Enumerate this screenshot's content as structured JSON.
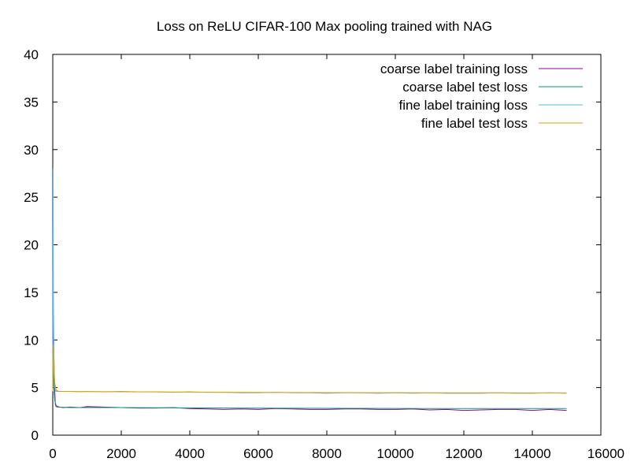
{
  "chart_data": {
    "type": "line",
    "title": "Loss on ReLU CIFAR-100 Max pooling trained with NAG",
    "xlabel": "",
    "ylabel": "",
    "xlim": [
      0,
      16000
    ],
    "ylim": [
      0,
      40
    ],
    "x_ticks": [
      0,
      2000,
      4000,
      6000,
      8000,
      10000,
      12000,
      14000,
      16000
    ],
    "y_ticks": [
      0,
      5,
      10,
      15,
      20,
      25,
      30,
      35,
      40
    ],
    "grid": false,
    "legend_position": "top-right",
    "series": [
      {
        "name": "coarse label training loss",
        "color": "#990099",
        "x": [
          0,
          15,
          30,
          45,
          60,
          75,
          100,
          150,
          200,
          300,
          500,
          800,
          1000,
          1500,
          2000,
          2500,
          3000,
          3500,
          4000,
          4500,
          5000,
          5500,
          6000,
          6500,
          7000,
          7500,
          8000,
          8500,
          9000,
          9500,
          10000,
          10500,
          11000,
          11500,
          12000,
          12500,
          13000,
          13500,
          14000,
          14500,
          15000
        ],
        "y": [
          4.6,
          12.4,
          9.0,
          6.0,
          4.5,
          3.2,
          3.0,
          2.95,
          2.95,
          2.9,
          2.95,
          2.9,
          3.0,
          2.95,
          2.9,
          2.85,
          2.85,
          2.9,
          2.8,
          2.75,
          2.7,
          2.75,
          2.7,
          2.8,
          2.75,
          2.7,
          2.7,
          2.75,
          2.75,
          2.7,
          2.7,
          2.75,
          2.65,
          2.7,
          2.6,
          2.65,
          2.7,
          2.7,
          2.6,
          2.7,
          2.6
        ]
      },
      {
        "name": "coarse label test loss",
        "color": "#009e73",
        "x": [
          0,
          15,
          30,
          60,
          100,
          200,
          500,
          1000,
          2000,
          3000,
          4000,
          5000,
          6000,
          7000,
          8000,
          9000,
          10000,
          11000,
          12000,
          13000,
          14000,
          15000
        ],
        "y": [
          4.6,
          7.0,
          5.0,
          3.6,
          3.1,
          2.95,
          2.9,
          2.9,
          2.9,
          2.88,
          2.86,
          2.85,
          2.84,
          2.83,
          2.82,
          2.82,
          2.81,
          2.8,
          2.8,
          2.8,
          2.79,
          2.79
        ]
      },
      {
        "name": "fine label training loss",
        "color": "#56b4e9",
        "x": [
          0,
          10,
          20,
          35,
          50,
          70,
          100,
          150,
          200,
          300,
          500,
          800,
          1000,
          1500,
          2000,
          2500,
          3000,
          3500,
          4000,
          4500,
          5000,
          5500,
          6000,
          6500,
          7000,
          7500,
          8000,
          8500,
          9000,
          9500,
          10000,
          10500,
          11000,
          11500,
          12000,
          12500,
          13000,
          13500,
          14000,
          14500,
          15000
        ],
        "y": [
          4.6,
          28.0,
          14.0,
          8.5,
          5.5,
          4.7,
          4.6,
          4.6,
          4.6,
          4.6,
          4.6,
          4.55,
          4.6,
          4.55,
          4.6,
          4.55,
          4.55,
          4.5,
          4.55,
          4.5,
          4.5,
          4.45,
          4.45,
          4.5,
          4.45,
          4.45,
          4.4,
          4.45,
          4.45,
          4.4,
          4.45,
          4.4,
          4.45,
          4.4,
          4.4,
          4.4,
          4.45,
          4.4,
          4.4,
          4.45,
          4.4
        ]
      },
      {
        "name": "fine label test loss",
        "color": "#e69f00",
        "x": [
          0,
          15,
          30,
          60,
          100,
          200,
          500,
          1000,
          2000,
          3000,
          4000,
          5000,
          6000,
          7000,
          8000,
          9000,
          10000,
          11000,
          12000,
          13000,
          14000,
          15000
        ],
        "y": [
          4.6,
          9.5,
          7.5,
          5.5,
          4.7,
          4.6,
          4.6,
          4.58,
          4.56,
          4.54,
          4.52,
          4.5,
          4.49,
          4.48,
          4.47,
          4.46,
          4.46,
          4.45,
          4.45,
          4.45,
          4.44,
          4.44
        ]
      }
    ]
  }
}
